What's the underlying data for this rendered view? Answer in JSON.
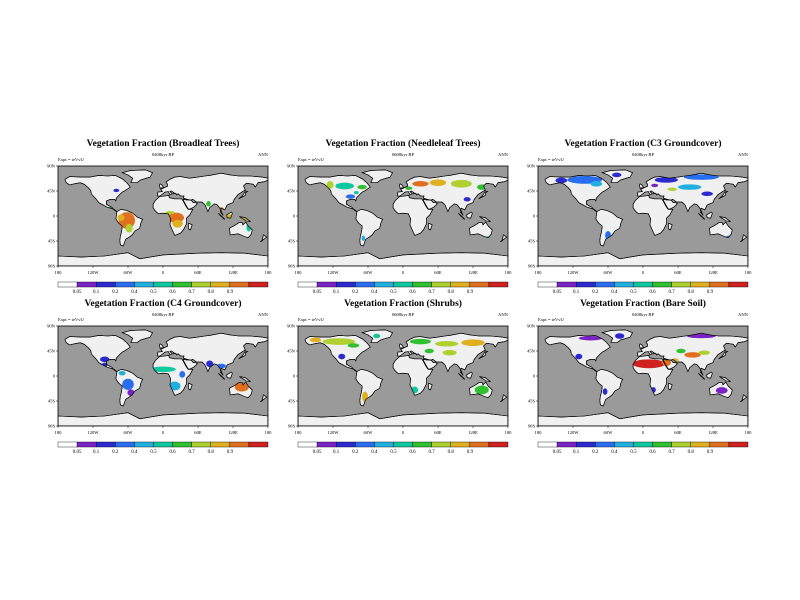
{
  "colorbar": {
    "labels": [
      "0.05",
      "0.1",
      "0.2",
      "0.4",
      "0.5",
      "0.6",
      "0.7",
      "0.8",
      "0.9"
    ],
    "colors": [
      "#ffffff",
      "#7a22c6",
      "#2a2ad0",
      "#2a6ef0",
      "#20b0e0",
      "#10c8a0",
      "#30c030",
      "#b0d030",
      "#e0b020",
      "#e07020",
      "#d02020"
    ]
  },
  "axes": {
    "lat_labels": [
      "90N",
      "45N",
      "0",
      "45S",
      "90S"
    ],
    "lon_labels": [
      "180",
      "120W",
      "60W",
      "0",
      "60E",
      "120E",
      "180"
    ]
  },
  "colors": {
    "ocean": "#9a9a9a",
    "land": "#f0f0f0"
  },
  "panels": [
    {
      "title": "Vegetation Fraction (Broadleaf Trees)",
      "expt": "Expt = teVvU",
      "time": "0400kyr BP",
      "season": "ANN",
      "type": "broadleaf"
    },
    {
      "title": "Vegetation Fraction (Needleleaf Trees)",
      "expt": "Expt = teVvU",
      "time": "0600kyr BP",
      "season": "ANN",
      "type": "needleleaf"
    },
    {
      "title": "Vegetation Fraction (C3 Groundcover)",
      "expt": "Expt = teVvU",
      "time": "0400kyr BP",
      "season": "ANN",
      "type": "c3"
    },
    {
      "title": "Vegetation Fraction (C4 Groundcover)",
      "expt": "Expt = teVvU",
      "time": "0400kyr BP",
      "season": "ANN",
      "type": "c4"
    },
    {
      "title": "Vegetation Fraction (Shrubs)",
      "expt": "Expt = teVvU",
      "time": "0600kyr BP",
      "season": "ANN",
      "type": "shrubs"
    },
    {
      "title": "Vegetation Fraction (Bare Soil)",
      "expt": "Expt = teVvU",
      "time": "0400kyr BP",
      "season": "ANN",
      "type": "bare"
    }
  ]
}
